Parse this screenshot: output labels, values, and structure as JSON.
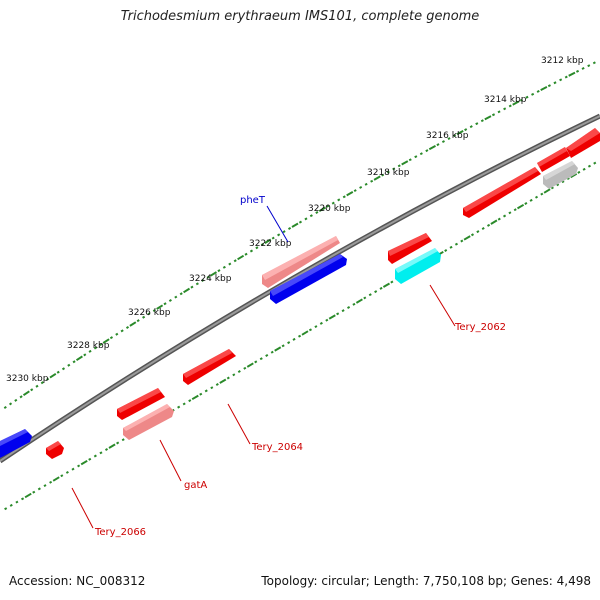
{
  "title": "Trichodesmium erythraeum IMS101, complete genome",
  "accession_text": "Accession: NC_008312",
  "summary_text": "Topology: circular; Length: 7,750,108 bp; Genes: 4,498",
  "scale_labels": [
    "3212 kbp",
    "3214 kbp",
    "3216 kbp",
    "3218 kbp",
    "3220 kbp",
    "3222 kbp",
    "3224 kbp",
    "3226 kbp",
    "3228 kbp",
    "3230 kbp"
  ],
  "gene_labels": [
    {
      "text": "pheT",
      "color": "#0000cc"
    },
    {
      "text": "Tery_2062",
      "color": "#cc0000"
    },
    {
      "text": "Tery_2064",
      "color": "#cc0000"
    },
    {
      "text": "gatA",
      "color": "#cc0000"
    },
    {
      "text": "Tery_2066",
      "color": "#cc0000"
    }
  ],
  "colors": {
    "backbone": "#808080",
    "outer_ticks": "#2a8a2a",
    "red_gene": "#ee0000",
    "pink_gene": "#ee8888",
    "blue_gene": "#0000ee",
    "cyan_gene": "#00eeee",
    "grey_gene": "#bbbbbb"
  }
}
